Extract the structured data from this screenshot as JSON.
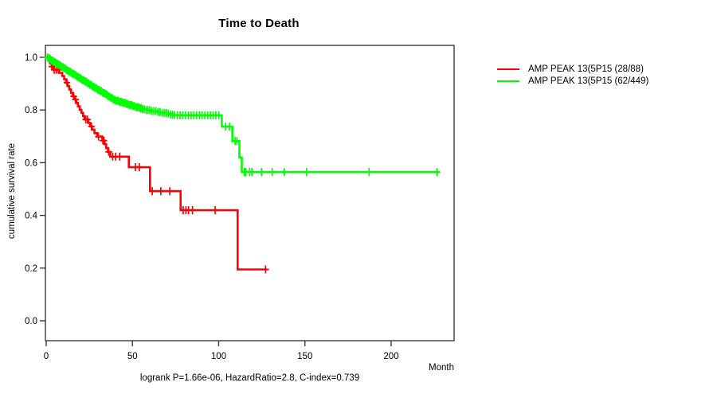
{
  "chart_data": {
    "type": "line",
    "subtype": "kaplan-meier-step",
    "title": "Time to Death",
    "xlabel": "Month",
    "ylabel": "cumulative survival rate",
    "footer": "logrank P=1.66e-06, HazardRatio=2.8, C-index=0.739",
    "xticks": [
      "0",
      "50",
      "100",
      "150",
      "200"
    ],
    "yticks": [
      "0.0",
      "0.2",
      "0.4",
      "0.6",
      "0.8",
      "1.0"
    ],
    "xlim": [
      0,
      237
    ],
    "ylim": [
      0,
      1
    ],
    "grid": false,
    "legend_position": "right-outside",
    "axis_color": "#3a3a3a",
    "series": [
      {
        "name": "AMP PEAK 13(5P15 (28/88)",
        "color": "#ff0000",
        "end_month": 128,
        "steps": [
          [
            0,
            1.0
          ],
          [
            1.2,
            0.989
          ],
          [
            2.2,
            0.977
          ],
          [
            3.2,
            0.965
          ],
          [
            4.2,
            0.953
          ],
          [
            7.5,
            0.941
          ],
          [
            9.3,
            0.929
          ],
          [
            10.4,
            0.917
          ],
          [
            11.4,
            0.904
          ],
          [
            12.4,
            0.891
          ],
          [
            13.4,
            0.878
          ],
          [
            14.4,
            0.865
          ],
          [
            15.4,
            0.852
          ],
          [
            16.4,
            0.84
          ],
          [
            17.4,
            0.827
          ],
          [
            18.4,
            0.814
          ],
          [
            19.4,
            0.801
          ],
          [
            20.4,
            0.789
          ],
          [
            21.4,
            0.777
          ],
          [
            22.2,
            0.764
          ],
          [
            24.5,
            0.751
          ],
          [
            25.5,
            0.738
          ],
          [
            26.6,
            0.725
          ],
          [
            28.0,
            0.712
          ],
          [
            29.6,
            0.699
          ],
          [
            32.5,
            0.684
          ],
          [
            33.8,
            0.67
          ],
          [
            34.8,
            0.656
          ],
          [
            35.8,
            0.641
          ],
          [
            37.1,
            0.623
          ],
          [
            47.9,
            0.583
          ],
          [
            60.2,
            0.492
          ],
          [
            77.9,
            0.42
          ],
          [
            111.0,
            0.195
          ]
        ],
        "censor_months": [
          3.3,
          4.6,
          5.8,
          7.0,
          12.0,
          15.9,
          17.0,
          22.9,
          23.9,
          26.2,
          30.3,
          32.9,
          33.4,
          36.2,
          38.5,
          40.3,
          42.6,
          51.7,
          54.0,
          61.5,
          66.4,
          71.7,
          79.4,
          81.0,
          82.5,
          84.8,
          97.9,
          127.2
        ]
      },
      {
        "name": "AMP PEAK 13(5P15 (62/449)",
        "color": "#00ff00",
        "end_month": 228,
        "steps": [
          [
            0,
            1.0
          ],
          [
            1,
            0.996
          ],
          [
            2,
            0.992
          ],
          [
            3,
            0.988
          ],
          [
            4,
            0.983
          ],
          [
            5,
            0.979
          ],
          [
            6,
            0.975
          ],
          [
            7,
            0.971
          ],
          [
            8,
            0.967
          ],
          [
            9,
            0.963
          ],
          [
            10,
            0.959
          ],
          [
            11,
            0.954
          ],
          [
            12,
            0.95
          ],
          [
            13,
            0.946
          ],
          [
            14,
            0.942
          ],
          [
            15,
            0.938
          ],
          [
            16,
            0.934
          ],
          [
            17,
            0.929
          ],
          [
            18,
            0.925
          ],
          [
            19,
            0.921
          ],
          [
            20,
            0.917
          ],
          [
            21,
            0.913
          ],
          [
            22,
            0.909
          ],
          [
            23,
            0.905
          ],
          [
            24,
            0.901
          ],
          [
            25,
            0.896
          ],
          [
            26,
            0.892
          ],
          [
            27,
            0.888
          ],
          [
            28,
            0.884
          ],
          [
            29,
            0.88
          ],
          [
            30,
            0.876
          ],
          [
            31,
            0.872
          ],
          [
            32,
            0.868
          ],
          [
            33,
            0.864
          ],
          [
            34,
            0.86
          ],
          [
            35,
            0.856
          ],
          [
            36,
            0.851
          ],
          [
            37,
            0.847
          ],
          [
            38,
            0.843
          ],
          [
            39,
            0.839
          ],
          [
            40,
            0.835
          ],
          [
            42,
            0.831
          ],
          [
            44,
            0.827
          ],
          [
            46,
            0.823
          ],
          [
            48,
            0.819
          ],
          [
            50,
            0.815
          ],
          [
            52,
            0.811
          ],
          [
            54,
            0.807
          ],
          [
            56,
            0.803
          ],
          [
            58,
            0.8
          ],
          [
            61,
            0.796
          ],
          [
            64,
            0.792
          ],
          [
            67,
            0.789
          ],
          [
            70,
            0.786
          ],
          [
            72,
            0.783
          ],
          [
            74,
            0.781
          ],
          [
            75,
            0.78
          ],
          [
            101.8,
            0.737
          ],
          [
            107.9,
            0.682
          ],
          [
            112.0,
            0.62
          ],
          [
            113.4,
            0.565
          ]
        ],
        "censor_months": [
          0.7,
          1.3,
          1.9,
          2.5,
          3.1,
          3.7,
          4.3,
          4.9,
          5.5,
          6.1,
          6.7,
          7.3,
          7.9,
          8.5,
          9.1,
          9.7,
          10.3,
          10.9,
          11.5,
          12.1,
          12.7,
          13.3,
          13.9,
          14.5,
          15.1,
          15.7,
          16.3,
          16.9,
          17.5,
          18.1,
          18.7,
          19.3,
          19.9,
          20.5,
          21.1,
          21.7,
          22.3,
          22.9,
          23.5,
          24.1,
          24.7,
          25.3,
          25.9,
          26.5,
          27.1,
          27.7,
          28.3,
          28.9,
          29.5,
          30.1,
          30.7,
          31.3,
          31.9,
          32.5,
          33.1,
          33.7,
          34.3,
          34.9,
          35.5,
          36.1,
          36.7,
          37.3,
          37.9,
          38.5,
          39.1,
          39.7,
          40.3,
          41.0,
          41.7,
          42.4,
          43.1,
          43.8,
          44.5,
          45.2,
          45.9,
          46.6,
          47.3,
          48.0,
          48.8,
          49.6,
          50.4,
          51.2,
          52.0,
          52.8,
          53.6,
          54.4,
          55.2,
          56.0,
          57.0,
          58.0,
          59.0,
          60.0,
          61.2,
          62.4,
          63.6,
          64.8,
          66.0,
          67.2,
          68.4,
          69.6,
          70.8,
          72.0,
          73.2,
          74.4,
          76.0,
          77.6,
          79.2,
          80.8,
          82.4,
          84.0,
          85.6,
          87.2,
          88.8,
          90.4,
          92.0,
          93.6,
          95.2,
          96.8,
          98.4,
          100.0,
          104.0,
          106.2,
          109.5,
          110.6,
          114.9,
          115.6,
          117.9,
          119.2,
          124.8,
          131.0,
          138.0,
          151.0,
          187.2,
          226.5
        ]
      }
    ]
  }
}
